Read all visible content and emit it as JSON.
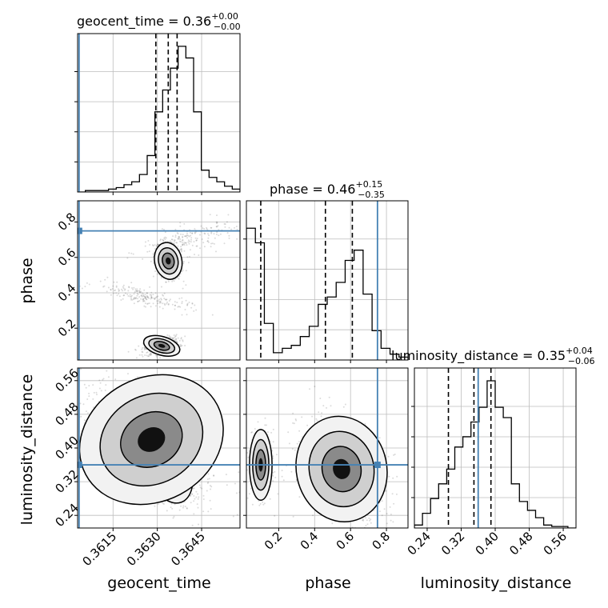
{
  "chart_data": {
    "type": "scatter",
    "subtype": "corner-plot",
    "parameters": [
      "geocent_time",
      "phase",
      "luminosity_distance"
    ],
    "truth": {
      "geocent_time": 0.36035,
      "phase": 0.75,
      "luminosity_distance": 0.36
    },
    "truth_color": "#4682b4",
    "titles": [
      {
        "name": "geocent_time",
        "value": "0.36",
        "plus": "+0.00",
        "minus": "−0.00"
      },
      {
        "name": "phase",
        "value": "0.46",
        "plus": "+0.15",
        "minus": "−0.35"
      },
      {
        "name": "luminosity_distance",
        "value": "0.35",
        "plus": "+0.04",
        "minus": "−0.06"
      }
    ],
    "ranges": {
      "geocent_time": [
        0.3603,
        0.3658
      ],
      "phase": [
        0.02,
        0.92
      ],
      "luminosity_distance": [
        0.21,
        0.59
      ]
    },
    "ticks": {
      "geocent_time": [
        "0.3615",
        "0.3630",
        "0.3645"
      ],
      "phase": [
        "0.2",
        "0.4",
        "0.6",
        "0.8"
      ],
      "luminosity_distance": [
        "0.24",
        "0.32",
        "0.40",
        "0.48",
        "0.56"
      ]
    },
    "tick_values": {
      "geocent_time": [
        0.3615,
        0.363,
        0.3645
      ],
      "phase": [
        0.2,
        0.4,
        0.6,
        0.8
      ],
      "luminosity_distance": [
        0.24,
        0.32,
        0.4,
        0.48,
        0.56
      ]
    },
    "quantiles": {
      "geocent_time": [
        0.36295,
        0.36337,
        0.36367
      ],
      "phase": [
        0.1,
        0.46,
        0.61
      ],
      "luminosity_distance": [
        0.29,
        0.35,
        0.39
      ]
    },
    "histograms": {
      "geocent_time": [
        0.0,
        0.01,
        0.01,
        0.01,
        0.02,
        0.03,
        0.05,
        0.07,
        0.12,
        0.25,
        0.55,
        0.7,
        0.85,
        1.0,
        0.92,
        0.55,
        0.15,
        0.1,
        0.07,
        0.04,
        0.02
      ],
      "phase": [
        0.9,
        0.8,
        0.25,
        0.05,
        0.08,
        0.1,
        0.16,
        0.23,
        0.38,
        0.43,
        0.53,
        0.68,
        0.75,
        0.45,
        0.2,
        0.08,
        0.04,
        0.02
      ],
      "luminosity_distance": [
        0.02,
        0.1,
        0.2,
        0.3,
        0.4,
        0.55,
        0.62,
        0.72,
        0.82,
        1.0,
        0.82,
        0.75,
        0.3,
        0.18,
        0.12,
        0.07,
        0.02,
        0.01,
        0.01,
        0.0
      ]
    },
    "grid": true
  },
  "labels": {
    "x": [
      "geocent_time",
      "phase",
      "luminosity_distance"
    ],
    "y": [
      "phase",
      "luminosity_distance"
    ]
  }
}
